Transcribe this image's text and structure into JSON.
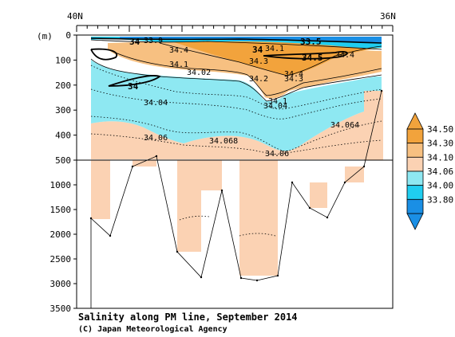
{
  "chart_data": {
    "type": "heatmap",
    "title": "Salinity along PM line, September 2014",
    "credit": "(C) Japan Meteorological Agency",
    "x_axis": {
      "start_label": "40N",
      "end_label": "36N"
    },
    "y_axis": {
      "unit_label": "(m)",
      "upper_ticks": [
        "0",
        "100",
        "200",
        "300",
        "400",
        "500"
      ],
      "lower_ticks": [
        "1000",
        "1500",
        "2000",
        "2500",
        "3000",
        "3500"
      ]
    },
    "colorbar": {
      "levels": [
        "34.50",
        "34.30",
        "34.10",
        "34.06",
        "34.00",
        "33.80"
      ],
      "colors": [
        "#f2a33c",
        "#f7c081",
        "#fbd2b3",
        "#8ee8f2",
        "#20cdf0",
        "#1a8fe5"
      ]
    },
    "contour_labels": [
      {
        "text": "34"
      },
      {
        "text": "34"
      },
      {
        "text": "34"
      },
      {
        "text": "33.9"
      },
      {
        "text": "33.5"
      },
      {
        "text": "34.5"
      },
      {
        "text": "34.4"
      },
      {
        "text": "34.4"
      },
      {
        "text": "34.4"
      },
      {
        "text": "34.3"
      },
      {
        "text": "34.3"
      },
      {
        "text": "34.1"
      },
      {
        "text": "34.1"
      },
      {
        "text": "34.1"
      },
      {
        "text": "34.02"
      },
      {
        "text": "34.2"
      },
      {
        "text": "34.04"
      },
      {
        "text": "34.04"
      },
      {
        "text": "34.06"
      },
      {
        "text": "34.068"
      },
      {
        "text": "34.06"
      },
      {
        "text": "34.064"
      }
    ],
    "bottom_depth_m": [
      1700,
      2000,
      600,
      500,
      500,
      2350,
      2850,
      1100,
      2900,
      2950,
      2900,
      950,
      1500,
      1650,
      950,
      200
    ]
  }
}
